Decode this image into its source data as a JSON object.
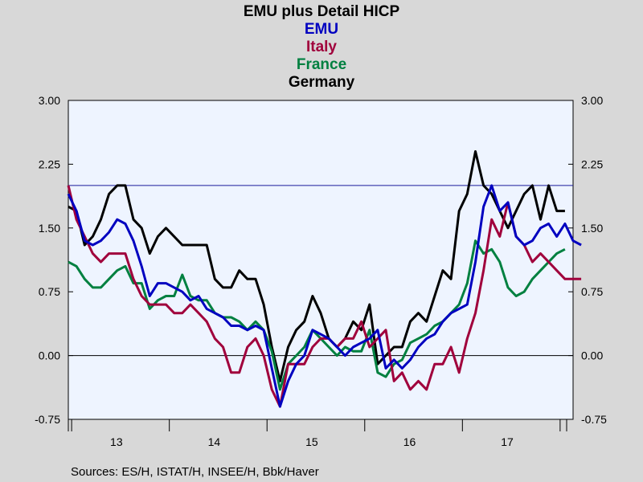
{
  "chart_data": {
    "type": "line",
    "title": "EMU plus Detail HICP",
    "subtitle_series": [
      "EMU",
      "Italy",
      "France",
      "Germany"
    ],
    "source": "Sources:  ES/H, ISTAT/H, INSEE/H, Bbk/Haver",
    "ylim": [
      -0.75,
      3.0
    ],
    "yticks": [
      "3.00",
      "2.25",
      "1.50",
      "0.75",
      "0.00",
      "-0.75"
    ],
    "ytick_values": [
      3.0,
      2.25,
      1.5,
      0.75,
      0.0,
      -0.75
    ],
    "xticks": [
      "13",
      "14",
      "15",
      "16",
      "17"
    ],
    "x_start": "2012-12",
    "x_end": "2017-11",
    "reference_lines": [
      2.0,
      0.0
    ],
    "colors": {
      "EMU": "#0000c0",
      "Italy": "#a0003c",
      "France": "#008040",
      "Germany": "#000000",
      "plot_bg": "#eef4ff",
      "ref_2": "#1a1a9a"
    },
    "series": [
      {
        "name": "Germany",
        "color": "#000000",
        "values": [
          1.75,
          1.7,
          1.3,
          1.4,
          1.6,
          1.9,
          2.0,
          2.0,
          1.6,
          1.5,
          1.2,
          1.4,
          1.5,
          1.4,
          1.3,
          1.3,
          1.3,
          1.3,
          0.9,
          0.8,
          0.8,
          1.0,
          0.9,
          0.9,
          0.6,
          0.1,
          -0.3,
          0.1,
          0.3,
          0.4,
          0.7,
          0.5,
          0.2,
          0.1,
          0.2,
          0.4,
          0.3,
          0.6,
          -0.1,
          0.0,
          0.1,
          0.1,
          0.4,
          0.5,
          0.4,
          0.7,
          1.0,
          0.9,
          1.7,
          1.9,
          2.4,
          2.0,
          1.9,
          1.7,
          1.5,
          1.7,
          1.9,
          2.0,
          1.6,
          2.0,
          1.7,
          1.7
        ]
      },
      {
        "name": "France",
        "color": "#008040",
        "values": [
          1.1,
          1.05,
          0.9,
          0.8,
          0.8,
          0.9,
          1.0,
          1.05,
          0.85,
          0.85,
          0.55,
          0.65,
          0.7,
          0.7,
          0.95,
          0.7,
          0.65,
          0.65,
          0.5,
          0.45,
          0.45,
          0.4,
          0.3,
          0.4,
          0.3,
          0.05,
          -0.4,
          -0.1,
          0.0,
          0.1,
          0.3,
          0.2,
          0.1,
          0.0,
          0.1,
          0.05,
          0.05,
          0.3,
          -0.2,
          -0.25,
          -0.1,
          -0.05,
          0.15,
          0.2,
          0.25,
          0.35,
          0.4,
          0.5,
          0.6,
          0.85,
          1.35,
          1.2,
          1.25,
          1.1,
          0.8,
          0.7,
          0.75,
          0.9,
          1.0,
          1.1,
          1.2,
          1.25
        ]
      },
      {
        "name": "Italy",
        "color": "#a0003c",
        "values": [
          2.0,
          1.6,
          1.4,
          1.2,
          1.1,
          1.2,
          1.2,
          1.2,
          0.9,
          0.7,
          0.6,
          0.6,
          0.6,
          0.5,
          0.5,
          0.6,
          0.5,
          0.4,
          0.2,
          0.1,
          -0.2,
          -0.2,
          0.1,
          0.2,
          0.0,
          -0.4,
          -0.6,
          -0.1,
          -0.1,
          -0.1,
          0.1,
          0.2,
          0.2,
          0.1,
          0.2,
          0.2,
          0.4,
          0.1,
          0.2,
          0.3,
          -0.3,
          -0.2,
          -0.4,
          -0.3,
          -0.4,
          -0.1,
          -0.1,
          0.1,
          -0.2,
          0.2,
          0.5,
          1.0,
          1.6,
          1.4,
          1.8,
          1.4,
          1.3,
          1.1,
          1.2,
          1.1,
          1.0,
          0.9,
          0.9,
          0.9
        ]
      },
      {
        "name": "EMU",
        "color": "#0000c0",
        "values": [
          1.9,
          1.7,
          1.35,
          1.3,
          1.35,
          1.45,
          1.6,
          1.55,
          1.35,
          1.05,
          0.7,
          0.85,
          0.85,
          0.8,
          0.75,
          0.65,
          0.7,
          0.55,
          0.5,
          0.45,
          0.35,
          0.35,
          0.3,
          0.35,
          0.3,
          -0.15,
          -0.6,
          -0.3,
          -0.1,
          0.0,
          0.3,
          0.25,
          0.2,
          0.1,
          0.0,
          0.1,
          0.15,
          0.2,
          0.3,
          -0.15,
          -0.05,
          -0.15,
          -0.05,
          0.1,
          0.2,
          0.25,
          0.4,
          0.5,
          0.55,
          0.6,
          1.1,
          1.75,
          2.0,
          1.7,
          1.8,
          1.4,
          1.3,
          1.35,
          1.5,
          1.55,
          1.4,
          1.55,
          1.35,
          1.3
        ]
      }
    ]
  }
}
